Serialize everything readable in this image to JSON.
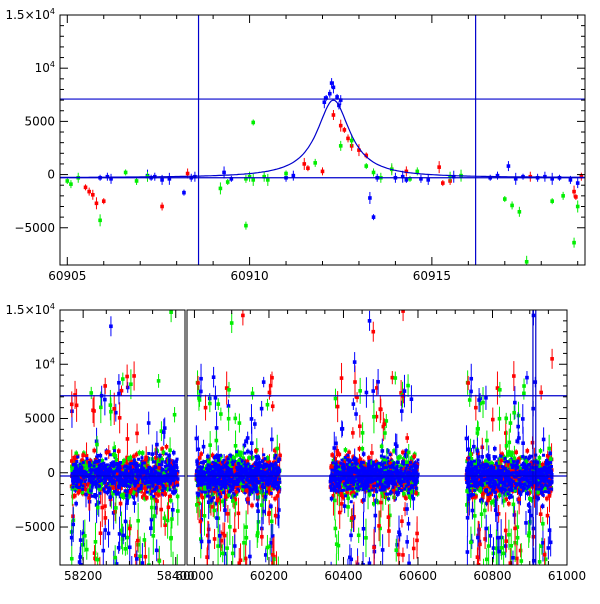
{
  "chart_data": [
    {
      "type": "scatter",
      "title": "",
      "xlabel": "",
      "ylabel": "",
      "xlim": [
        60904.8,
        60919.2
      ],
      "ylim": [
        -8500,
        15000
      ],
      "x_ticks": [
        {
          "value": 60905,
          "label": "60905"
        },
        {
          "value": 60910,
          "label": "60910"
        },
        {
          "value": 60915,
          "label": "60915"
        }
      ],
      "y_ticks": [
        {
          "value": -5000,
          "label": "−5000"
        },
        {
          "value": 0,
          "label": "0"
        },
        {
          "value": 5000,
          "label": "5000"
        },
        {
          "value": 10000,
          "label": "10",
          "sup": "4"
        },
        {
          "value": 15000,
          "label": "1.5×10",
          "sup": "4"
        }
      ],
      "reference_lines": {
        "vertical": [
          60908.6,
          60916.2
        ],
        "horizontal": [
          7100,
          -300
        ]
      },
      "model_curve": {
        "type": "lorentzian",
        "center": 60912.3,
        "width": 0.55,
        "peak": 7000,
        "baseline": -300
      },
      "series_colors": [
        "#0000ff",
        "#ff0000",
        "#00ee00"
      ],
      "series": [
        {
          "color": "#0000ff",
          "points": [
            [
              60905.9,
              -300
            ],
            [
              60906.1,
              -200
            ],
            [
              60906.2,
              -400
            ],
            [
              60907.2,
              -100
            ],
            [
              60907.3,
              -300
            ],
            [
              60907.4,
              -200
            ],
            [
              60907.6,
              -500
            ],
            [
              60907.8,
              -400
            ],
            [
              60908.2,
              -1700
            ],
            [
              60908.4,
              -300
            ],
            [
              60908.5,
              -200
            ],
            [
              60909.3,
              200
            ],
            [
              60909.5,
              -400
            ],
            [
              60911.0,
              -300
            ],
            [
              60911.2,
              -100
            ],
            [
              60912.05,
              6800
            ],
            [
              60912.1,
              7200
            ],
            [
              60912.2,
              7600
            ],
            [
              60912.25,
              8600
            ],
            [
              60912.3,
              8200
            ],
            [
              60912.4,
              7300
            ],
            [
              60912.45,
              6500
            ],
            [
              60912.5,
              7000
            ],
            [
              60913.3,
              -2200
            ],
            [
              60913.4,
              -4000
            ],
            [
              60913.5,
              -300
            ],
            [
              60914.0,
              -300
            ],
            [
              60914.2,
              -200
            ],
            [
              60914.3,
              -500
            ],
            [
              60914.7,
              -400
            ],
            [
              60914.9,
              -500
            ],
            [
              60915.6,
              -200
            ],
            [
              60916.6,
              -300
            ],
            [
              60916.8,
              -100
            ],
            [
              60917.1,
              800
            ],
            [
              60917.3,
              -400
            ],
            [
              60917.5,
              -200
            ],
            [
              60917.9,
              -300
            ],
            [
              60918.1,
              -200
            ],
            [
              60918.3,
              -400
            ],
            [
              60918.5,
              -300
            ],
            [
              60918.8,
              -500
            ],
            [
              60919.0,
              -800
            ]
          ]
        },
        {
          "color": "#ff0000",
          "points": [
            [
              60905.5,
              -1200
            ],
            [
              60905.6,
              -1600
            ],
            [
              60905.7,
              -1900
            ],
            [
              60905.8,
              -2700
            ],
            [
              60906.0,
              -2500
            ],
            [
              60907.6,
              -3000
            ],
            [
              60908.3,
              100
            ],
            [
              60911.5,
              1000
            ],
            [
              60911.6,
              600
            ],
            [
              60912.0,
              300
            ],
            [
              60912.3,
              5600
            ],
            [
              60912.5,
              4600
            ],
            [
              60912.6,
              4200
            ],
            [
              60912.7,
              3400
            ],
            [
              60912.8,
              2700
            ],
            [
              60913.0,
              2300
            ],
            [
              60913.2,
              1800
            ],
            [
              60913.9,
              500
            ],
            [
              60914.3,
              300
            ],
            [
              60915.2,
              700
            ],
            [
              60915.3,
              -800
            ],
            [
              60915.5,
              -600
            ],
            [
              60917.7,
              -200
            ],
            [
              60918.9,
              -1600
            ],
            [
              60918.95,
              -2100
            ],
            [
              60919.1,
              -200
            ]
          ]
        },
        {
          "color": "#00ee00",
          "points": [
            [
              60905.0,
              -600
            ],
            [
              60905.1,
              -900
            ],
            [
              60905.3,
              -300
            ],
            [
              60905.9,
              -4300
            ],
            [
              60906.6,
              200
            ],
            [
              60906.9,
              -600
            ],
            [
              60907.2,
              -200
            ],
            [
              60909.2,
              -1300
            ],
            [
              60909.4,
              -700
            ],
            [
              60909.9,
              -400
            ],
            [
              60910.0,
              -200
            ],
            [
              60910.1,
              -500
            ],
            [
              60910.1,
              4900
            ],
            [
              60909.9,
              -4800
            ],
            [
              60910.4,
              -200
            ],
            [
              60910.5,
              -500
            ],
            [
              60911.0,
              100
            ],
            [
              60911.8,
              1100
            ],
            [
              60912.5,
              2700
            ],
            [
              60912.8,
              3200
            ],
            [
              60913.2,
              800
            ],
            [
              60913.4,
              200
            ],
            [
              60913.6,
              -300
            ],
            [
              60913.9,
              500
            ],
            [
              60914.4,
              -400
            ],
            [
              60914.6,
              300
            ],
            [
              60915.5,
              -200
            ],
            [
              60915.8,
              -100
            ],
            [
              60917.0,
              -2300
            ],
            [
              60917.2,
              -2900
            ],
            [
              60917.4,
              -3500
            ],
            [
              60917.6,
              -8200
            ],
            [
              60918.3,
              -2500
            ],
            [
              60918.6,
              -2000
            ],
            [
              60918.9,
              -6400
            ],
            [
              60919.0,
              -3000
            ]
          ]
        }
      ]
    },
    {
      "type": "scatter",
      "title": "",
      "xlabel": "",
      "ylabel": "",
      "xlim": [
        58150,
        61000
      ],
      "ylim": [
        -8500,
        15000
      ],
      "segments": [
        [
          58150,
          58420
        ],
        [
          59980,
          61000
        ]
      ],
      "x_ticks": [
        {
          "value": 58200,
          "label": "58200"
        },
        {
          "value": 58400,
          "label": "58400"
        },
        {
          "value": 60000,
          "label": "60000"
        },
        {
          "value": 60200,
          "label": "60200"
        },
        {
          "value": 60400,
          "label": "60400"
        },
        {
          "value": 60600,
          "label": "60600"
        },
        {
          "value": 60800,
          "label": "60800"
        },
        {
          "value": 61000,
          "label": "61000"
        }
      ],
      "y_ticks": [
        {
          "value": -5000,
          "label": "−5000"
        },
        {
          "value": 0,
          "label": "0"
        },
        {
          "value": 5000,
          "label": "5000"
        },
        {
          "value": 10000,
          "label": "10",
          "sup": "4"
        },
        {
          "value": 15000,
          "label": "1.5×10",
          "sup": "4"
        }
      ],
      "reference_lines": {
        "vertical": [
          60908.6,
          60916.2
        ],
        "horizontal": [
          7100,
          -300
        ]
      },
      "observing_seasons": [
        [
          58175,
          58405
        ],
        [
          60005,
          60230
        ],
        [
          60365,
          60600
        ],
        [
          60730,
          60960
        ]
      ],
      "series_colors": [
        "#0000ff",
        "#ff0000",
        "#00ee00"
      ],
      "highlight_points": [
        {
          "color": "#0000ff",
          "x": 58260,
          "y": 13500
        },
        {
          "color": "#0000ff",
          "x": 58240,
          "y": 7100
        },
        {
          "color": "#00ee00",
          "x": 58390,
          "y": 14800
        },
        {
          "color": "#0000ff",
          "x": 60470,
          "y": 14000
        },
        {
          "color": "#ff0000",
          "x": 60480,
          "y": 13000
        },
        {
          "color": "#ff0000",
          "x": 60560,
          "y": 14900
        },
        {
          "color": "#0000ff",
          "x": 60910,
          "y": 14500
        },
        {
          "color": "#ff0000",
          "x": 60960,
          "y": 10500
        },
        {
          "color": "#00ee00",
          "x": 60100,
          "y": 13800
        },
        {
          "color": "#ff0000",
          "x": 60130,
          "y": 14500
        },
        {
          "color": "#0000ff",
          "x": 60430,
          "y": 10200
        }
      ]
    }
  ]
}
